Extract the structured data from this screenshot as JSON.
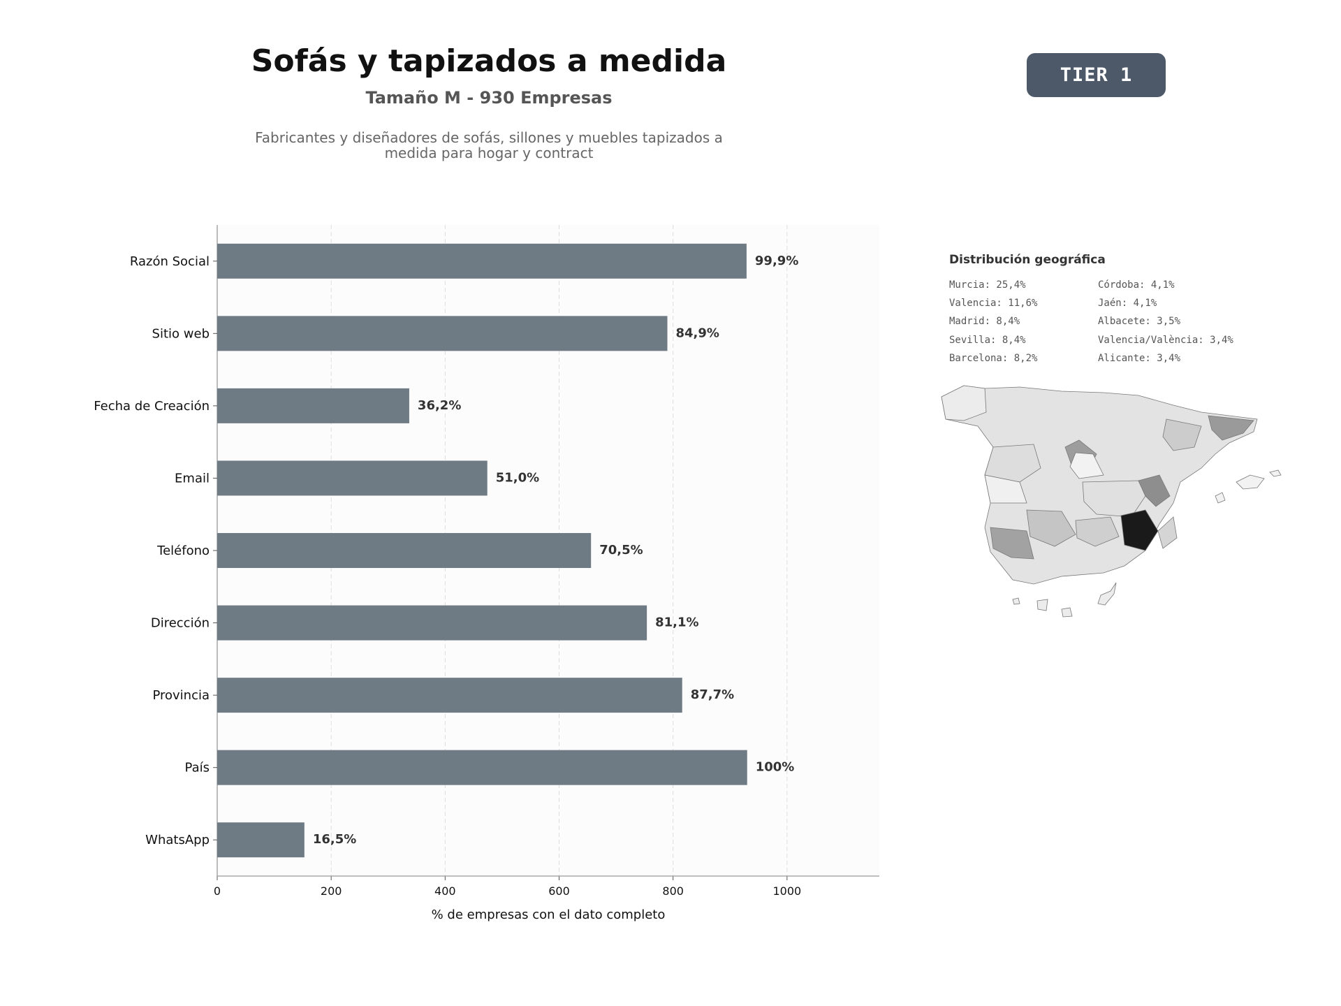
{
  "header": {
    "title": "Sofás y tapizados a medida",
    "subtitle": "Tamaño M - 930 Empresas",
    "description": "Fabricantes y diseñadores de sofás, sillones y muebles tapizados a medida para hogar y contract",
    "tier_badge": "TIER 1"
  },
  "chart_data": {
    "type": "bar",
    "orientation": "horizontal",
    "categories": [
      "Razón Social",
      "Sitio web",
      "Fecha de Creación",
      "Email",
      "Teléfono",
      "Dirección",
      "Provincia",
      "País",
      "WhatsApp"
    ],
    "values": [
      929,
      790,
      337,
      474,
      656,
      754,
      816,
      930,
      153
    ],
    "data_labels": [
      "99,9%",
      "84,9%",
      "36,2%",
      "51,0%",
      "70,5%",
      "81,1%",
      "87,7%",
      "100%",
      "16,5%"
    ],
    "xlabel": "% de empresas con el dato completo",
    "ylabel": "",
    "xlim": [
      0,
      1162
    ],
    "xticks": [
      0,
      200,
      400,
      600,
      800,
      1000
    ],
    "grid": "x-dashed",
    "bar_color": "#6e7a84"
  },
  "geo": {
    "title": "Distribución geográfica",
    "left_column": [
      "Murcia: 25,4%",
      "Valencia: 11,6%",
      "Madrid: 8,4%",
      "Sevilla: 8,4%",
      "Barcelona: 8,2%"
    ],
    "right_column": [
      "Córdoba: 4,1%",
      "Jaén: 4,1%",
      "Albacete: 3,5%",
      "Valencia/València: 3,4%",
      "Alicante: 3,4%"
    ]
  }
}
